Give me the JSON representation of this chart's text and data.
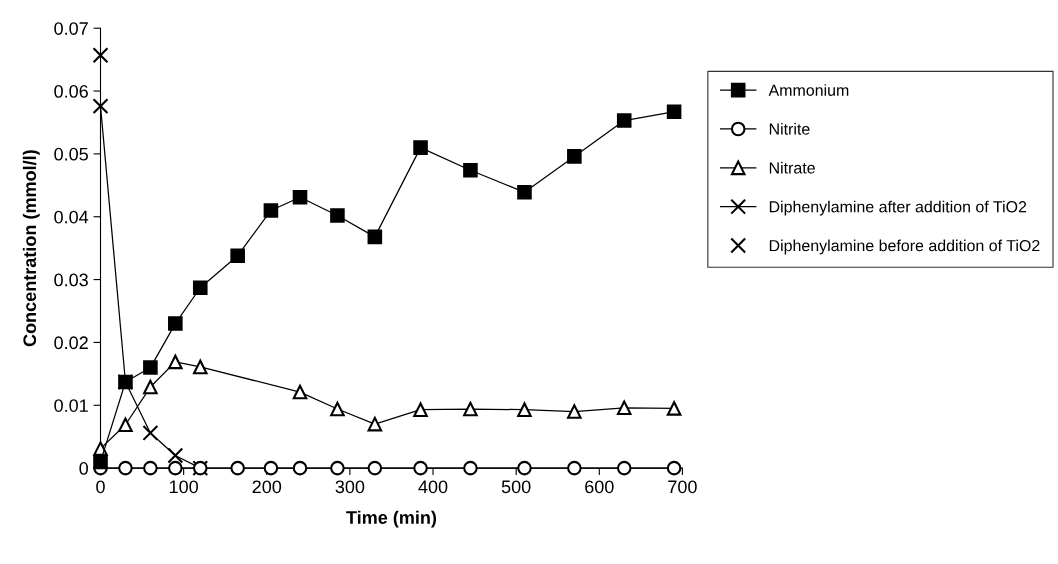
{
  "chart_data": {
    "type": "line",
    "xlabel": "Time (min)",
    "ylabel": "Concentration (mmol/l)",
    "xlim": [
      0,
      700
    ],
    "xticks": [
      0,
      100,
      200,
      300,
      400,
      500,
      600,
      700
    ],
    "ylim": [
      0,
      0.07
    ],
    "yticks": [
      0,
      0.01,
      0.02,
      0.03,
      0.04,
      0.05,
      0.06,
      0.07
    ],
    "grid": false,
    "legend": "right",
    "series": [
      {
        "name": "Ammonium",
        "color": "#000000",
        "marker": "square",
        "x": [
          0,
          30,
          60,
          90,
          120,
          165,
          205,
          240,
          285,
          330,
          385,
          445,
          510,
          570,
          630,
          690
        ],
        "values": [
          0.001,
          0.0137,
          0.016,
          0.023,
          0.0287,
          0.0338,
          0.041,
          0.0431,
          0.0402,
          0.0368,
          0.051,
          0.0474,
          0.0439,
          0.0496,
          0.0553,
          0.0567
        ]
      },
      {
        "name": "Nitrite",
        "color": "#000000",
        "marker": "circle",
        "x": [
          0,
          30,
          60,
          90,
          120,
          165,
          205,
          240,
          285,
          330,
          385,
          445,
          510,
          570,
          630,
          690
        ],
        "values": [
          0,
          0,
          0,
          0,
          0,
          0,
          0,
          0,
          0,
          0,
          0,
          0,
          0,
          0,
          0,
          0
        ]
      },
      {
        "name": "Nitrate",
        "color": "#000000",
        "marker": "triangle",
        "x": [
          0,
          30,
          60,
          90,
          120,
          240,
          285,
          330,
          385,
          445,
          510,
          570,
          630,
          690
        ],
        "values": [
          0.0031,
          0.0069,
          0.0129,
          0.0169,
          0.0161,
          0.0121,
          0.0094,
          0.007,
          0.0093,
          0.0094,
          0.0093,
          0.009,
          0.0096,
          0.0095
        ]
      },
      {
        "name": "Diphenylamine after addition of TiO2",
        "color": "#000000",
        "marker": "cross",
        "x": [
          0,
          30,
          60,
          90,
          120
        ],
        "values": [
          0.0576,
          0.0137,
          0.0056,
          0.002,
          0
        ]
      },
      {
        "name": "Diphenylamine before addition of TiO2",
        "type": "scatter",
        "color": "#000000",
        "marker": "cross",
        "x": [
          0
        ],
        "values": [
          0.0657
        ]
      }
    ]
  }
}
